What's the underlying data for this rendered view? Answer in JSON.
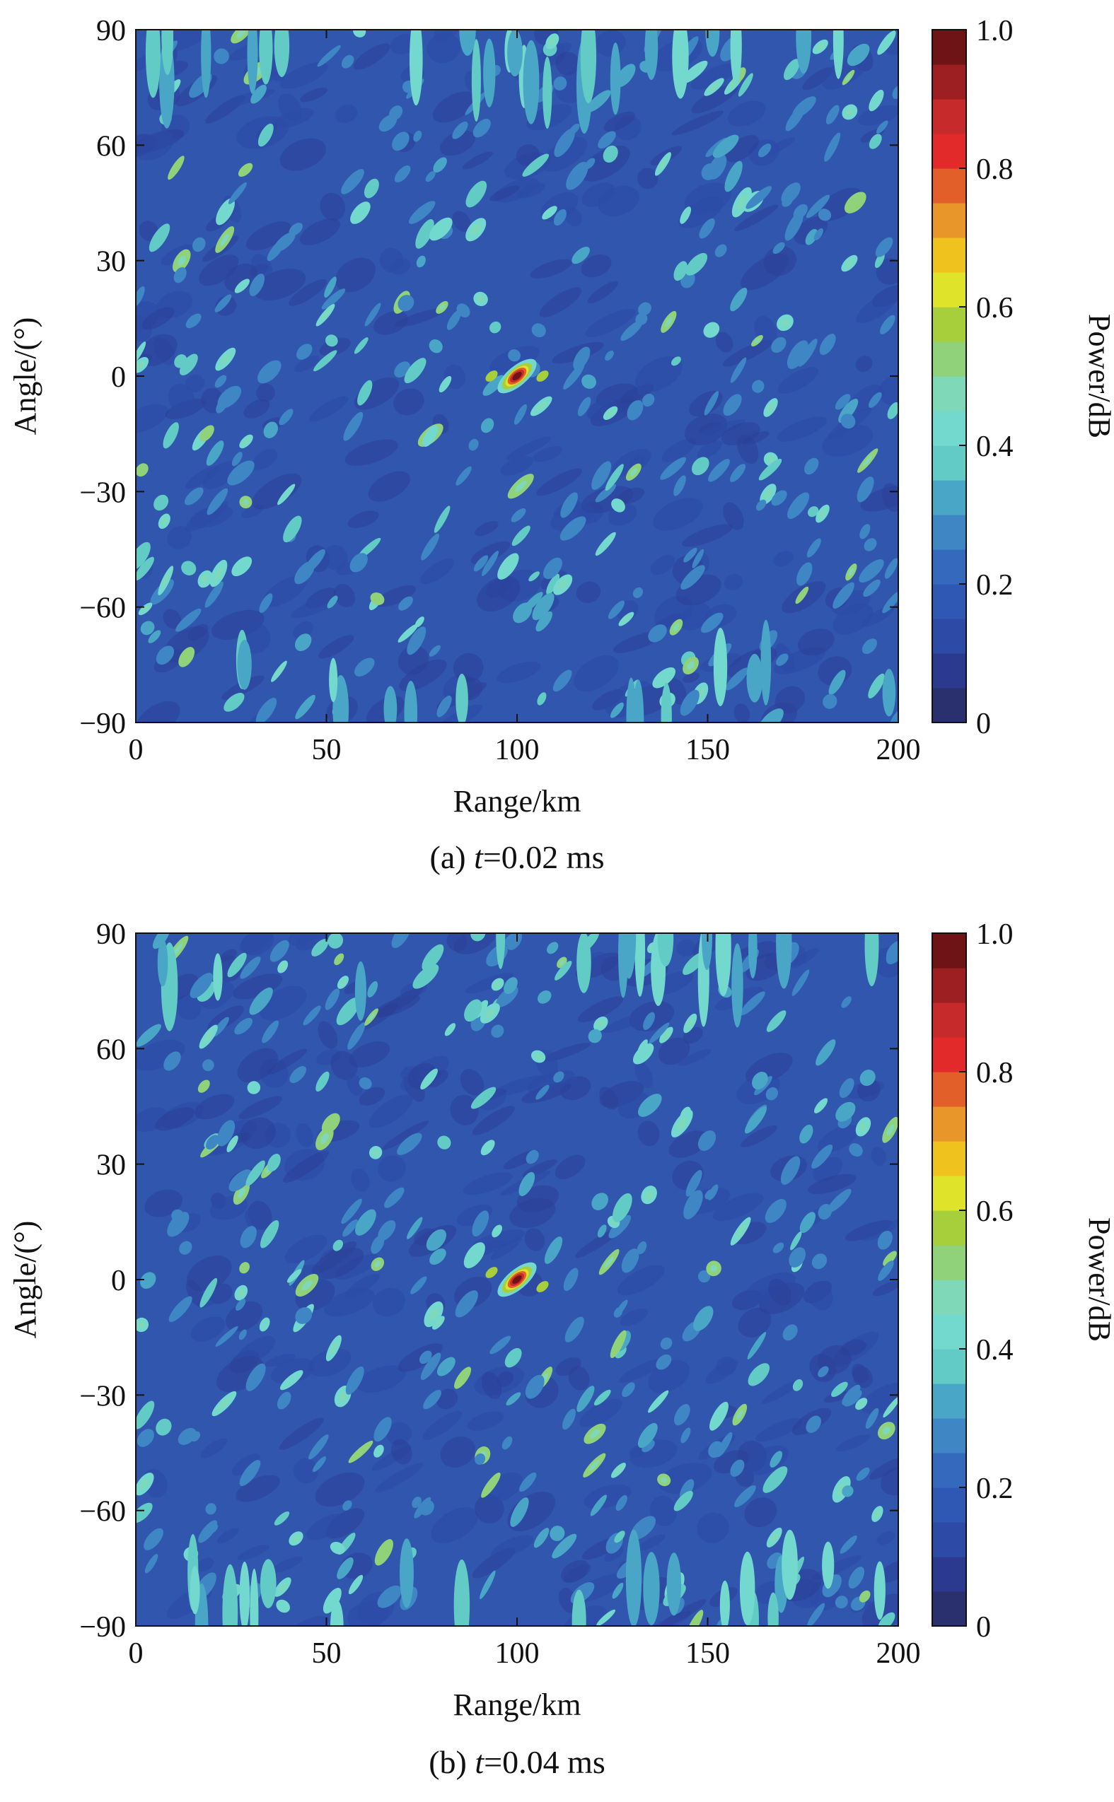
{
  "colors": {
    "colormap": [
      "#2a2f6e",
      "#2b3a8f",
      "#2c4aa6",
      "#2f57b4",
      "#3569bd",
      "#3f86c4",
      "#4aa6c7",
      "#63cbc6",
      "#73d9cf",
      "#7fd9b9",
      "#8fd27a",
      "#a7cf3c",
      "#dfe42a",
      "#f0c21e",
      "#e8962a",
      "#e35f2a",
      "#e32a2a",
      "#c72a2a",
      "#9e1f22",
      "#6e1416"
    ],
    "background_field": "#3156ad",
    "frame": "#111111"
  },
  "chart_data": [
    {
      "type": "heatmap",
      "panel": "a",
      "caption_prefix": "(a) ",
      "caption_var": "t",
      "caption_rest": "=0.02 ms",
      "xlabel": "Range/km",
      "ylabel": "Angle/(°)",
      "colorbar_label": "Power/dB",
      "xlim": [
        0,
        200
      ],
      "ylim": [
        -90,
        90
      ],
      "clim": [
        0,
        1
      ],
      "xticks": [
        "0",
        "50",
        "100",
        "150",
        "200"
      ],
      "yticks": [
        "90",
        "60",
        "30",
        "0",
        "−30",
        "−60",
        "−90"
      ],
      "cticks": [
        "1.0",
        "0.8",
        "0.6",
        "0.4",
        "0.2",
        "0"
      ],
      "peak": {
        "range_km": 100,
        "angle_deg": 0,
        "value": 1.0
      },
      "seed": 17
    },
    {
      "type": "heatmap",
      "panel": "b",
      "caption_prefix": "(b) ",
      "caption_var": "t",
      "caption_rest": "=0.04 ms",
      "xlabel": "Range/km",
      "ylabel": "Angle/(°)",
      "colorbar_label": "Power/dB",
      "xlim": [
        0,
        200
      ],
      "ylim": [
        -90,
        90
      ],
      "clim": [
        0,
        1
      ],
      "xticks": [
        "0",
        "50",
        "100",
        "150",
        "200"
      ],
      "yticks": [
        "90",
        "60",
        "30",
        "0",
        "−30",
        "−60",
        "−90"
      ],
      "cticks": [
        "1.0",
        "0.8",
        "0.6",
        "0.4",
        "0.2",
        "0"
      ],
      "peak": {
        "range_km": 100,
        "angle_deg": 0,
        "value": 1.0
      },
      "seed": 43
    }
  ]
}
